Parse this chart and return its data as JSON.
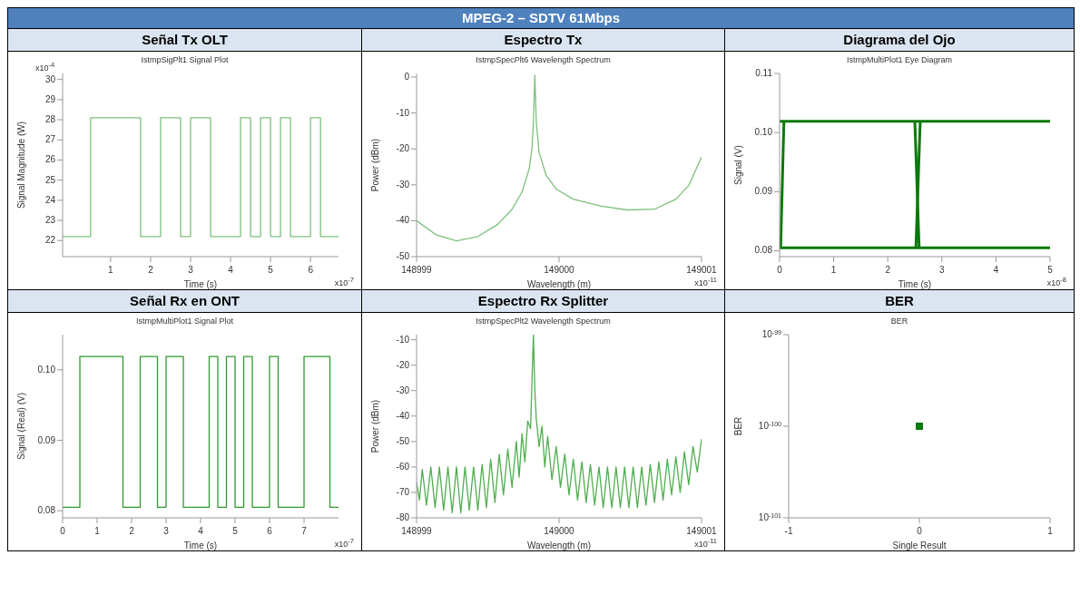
{
  "chart_data": [
    {
      "type": "other",
      "title": "MPEG-2 – SDTV 61Mbps"
    },
    {
      "type": "step",
      "title": "Señal Tx OLT",
      "subtitle": "IstmpSigPlt1 Signal Plot",
      "xlabel": "Time (s)",
      "ylabel": "Signal Magnitude (W)",
      "annotations": [
        "x10$^{-4}$",
        "x10$^{-7}$"
      ],
      "color": "#7cc07c",
      "x": [
        -0.2,
        0.5,
        1.75,
        2.25,
        2.75,
        3,
        3.5,
        4.25,
        4.5,
        4.75,
        5,
        5.25,
        5.5,
        6,
        6.25,
        6.7
      ],
      "values": [
        22.2,
        28.1,
        22.2,
        28.1,
        22.2,
        28.1,
        22.2,
        28.1,
        22.2,
        28.1,
        22.2,
        28.1,
        22.2,
        28.1,
        22.2,
        22.2
      ],
      "xlim": [
        -0.2,
        6.7
      ],
      "ylim": [
        21.2,
        30.3
      ],
      "xticks": [
        1,
        2,
        3,
        4,
        5,
        6
      ],
      "yticks": [
        22,
        23,
        24,
        25,
        26,
        27,
        28,
        29,
        30
      ]
    },
    {
      "type": "line",
      "title": "Espectro Tx",
      "subtitle": "IstmpSpecPlt6 Wavelength Spectrum",
      "xlabel": "Wavelength (m)",
      "ylabel": "Power (dBm)",
      "annotations": [
        "x10$^{-11}$"
      ],
      "color": "#7cc07c",
      "x": [
        148999.0,
        148999.14,
        148999.28,
        148999.43,
        148999.57,
        148999.67,
        148999.74,
        148999.79,
        148999.81,
        148999.82,
        148999.83,
        148999.84,
        148999.86,
        148999.91,
        148999.98,
        149000.1,
        149000.29,
        149000.48,
        149000.67,
        149000.82,
        149000.91,
        149001.0
      ],
      "values": [
        -40,
        -44,
        -45.6,
        -44.4,
        -41,
        -36.8,
        -32,
        -25.6,
        -20,
        -12.4,
        0.5,
        -12.4,
        -21,
        -27.4,
        -31.2,
        -34,
        -35.9,
        -37,
        -36.8,
        -34,
        -30.2,
        -22.3
      ],
      "xlim": [
        148999,
        149001
      ],
      "ylim": [
        -50,
        1
      ],
      "xticks": [
        148999,
        149000,
        149001
      ],
      "yticks": [
        -50,
        -40,
        -30,
        -20,
        -10,
        0
      ]
    },
    {
      "type": "line",
      "title": "Diagrama del Ojo",
      "subtitle": "IstmpMultiPlot1 Eye Diagram",
      "xlabel": "Time (s)",
      "ylabel": "Signal (V)",
      "annotations": [
        "x10$^{-8}$"
      ],
      "series": [
        {
          "color": "#0a7a0a",
          "x": [
            0,
            5
          ],
          "values": [
            0.1019,
            0.1019
          ]
        },
        {
          "color": "#0a7a0a",
          "x": [
            0,
            5
          ],
          "values": [
            0.0805,
            0.0805
          ]
        },
        {
          "color": "#0a7a0a",
          "x": [
            0.02,
            0.08
          ],
          "values": [
            0.0805,
            0.1019
          ]
        },
        {
          "color": "#0a7a0a",
          "x": [
            2.5,
            2.58
          ],
          "values": [
            0.1019,
            0.0805
          ]
        },
        {
          "color": "#0a7a0a",
          "x": [
            2.52,
            2.6
          ],
          "values": [
            0.0805,
            0.1019
          ]
        }
      ],
      "xlim": [
        0,
        5
      ],
      "ylim": [
        0.079,
        0.11
      ],
      "xticks": [
        0,
        1,
        2,
        3,
        4,
        5
      ],
      "yticks": [
        0.08,
        0.09,
        {
          "value": 0.1,
          "label": "0.10"
        },
        0.11
      ]
    },
    {
      "type": "step",
      "title": "Señal Rx en ONT",
      "subtitle": "IstmpMultiPlot1 Signal Plot",
      "xlabel": "Time (s)",
      "ylabel": "Signal (Real) (V)",
      "annotations": [
        "x10$^{-7}$"
      ],
      "color": "#2f9a2f",
      "x": [
        0,
        0.5,
        1.75,
        2.25,
        2.75,
        3,
        3.5,
        4.25,
        4.5,
        4.75,
        5,
        5.25,
        5.5,
        6,
        6.25,
        7,
        7.75,
        8
      ],
      "values": [
        0.0805,
        0.1019,
        0.0805,
        0.1019,
        0.0805,
        0.1019,
        0.0805,
        0.1019,
        0.0805,
        0.1019,
        0.0805,
        0.1019,
        0.0805,
        0.1019,
        0.0805,
        0.1019,
        0.0805,
        0.0805
      ],
      "xlim": [
        0,
        8
      ],
      "ylim": [
        0.079,
        0.105
      ],
      "xticks": [
        0,
        1,
        2,
        3,
        4,
        5,
        6,
        7
      ],
      "yticks": [
        {
          "value": 0.08,
          "label": "0.08"
        },
        {
          "value": 0.09,
          "label": "0.09"
        },
        {
          "value": 0.1,
          "label": "0.10"
        }
      ]
    },
    {
      "type": "line",
      "title": "Espectro Rx Splitter",
      "subtitle": "IstmpSpecPlt2 Wavelength Spectrum",
      "xlabel": "Wavelength (m)",
      "ylabel": "Power (dBm)",
      "annotations": [
        "x10$^{-11}$"
      ],
      "color": "#4fae4f",
      "x": [
        148999.0,
        148999.02,
        148999.04,
        148999.07,
        148999.1,
        148999.13,
        148999.16,
        148999.19,
        148999.22,
        148999.25,
        148999.28,
        148999.31,
        148999.34,
        148999.37,
        148999.4,
        148999.43,
        148999.46,
        148999.49,
        148999.52,
        148999.55,
        148999.58,
        148999.61,
        148999.64,
        148999.67,
        148999.7,
        148999.72,
        148999.74,
        148999.76,
        148999.78,
        148999.8,
        148999.81,
        148999.82,
        148999.83,
        148999.84,
        148999.86,
        148999.88,
        148999.9,
        148999.92,
        148999.95,
        148999.98,
        149000.01,
        149000.04,
        149000.07,
        149000.1,
        149000.13,
        149000.16,
        149000.19,
        149000.22,
        149000.25,
        149000.28,
        149000.31,
        149000.34,
        149000.37,
        149000.4,
        149000.43,
        149000.46,
        149000.49,
        149000.52,
        149000.55,
        149000.58,
        149000.61,
        149000.64,
        149000.67,
        149000.7,
        149000.73,
        149000.76,
        149000.79,
        149000.82,
        149000.85,
        149000.88,
        149000.91,
        149000.94,
        149000.97,
        149001.0
      ],
      "values": [
        -66,
        -73,
        -61,
        -75,
        -60,
        -76,
        -60,
        -77,
        -60,
        -78,
        -60,
        -78,
        -60,
        -77,
        -60,
        -77,
        -59,
        -76,
        -57,
        -74,
        -55,
        -71,
        -53,
        -68,
        -50,
        -64,
        -47,
        -58,
        -42,
        -45,
        -26,
        -8,
        -30,
        -41,
        -52,
        -44,
        -60,
        -48,
        -65,
        -52,
        -68,
        -55,
        -71,
        -57,
        -73,
        -58,
        -74,
        -59,
        -75,
        -60,
        -76,
        -60,
        -76,
        -60,
        -76,
        -60,
        -76,
        -60,
        -76,
        -60,
        -75,
        -59,
        -74,
        -58,
        -73,
        -57,
        -71,
        -56,
        -70,
        -54,
        -67,
        -52,
        -62,
        -49
      ],
      "xlim": [
        148999,
        149001
      ],
      "ylim": [
        -80,
        -8
      ],
      "xticks": [
        148999,
        149000,
        149001
      ],
      "yticks": [
        -80,
        -70,
        -60,
        -50,
        -40,
        -30,
        -20,
        -10
      ]
    },
    {
      "type": "scatter",
      "title": "BER",
      "subtitle": "BER",
      "xlabel": "Single Result",
      "ylabel": "BER",
      "color": "#0a7a0a",
      "marker": "square",
      "log": "y",
      "x": [
        0
      ],
      "values": [
        1e-100
      ],
      "xlim": [
        -1,
        1
      ],
      "ylim": [
        1e-101,
        1e-99
      ],
      "xticks": [
        -1,
        0,
        1
      ],
      "yticks": [
        {
          "value": 1e-101,
          "label": "10$^{-101}$"
        },
        {
          "value": 1e-100,
          "label": "10$^{-100}$"
        },
        {
          "value": 1e-99,
          "label": "10$^{-99}$"
        }
      ]
    }
  ]
}
